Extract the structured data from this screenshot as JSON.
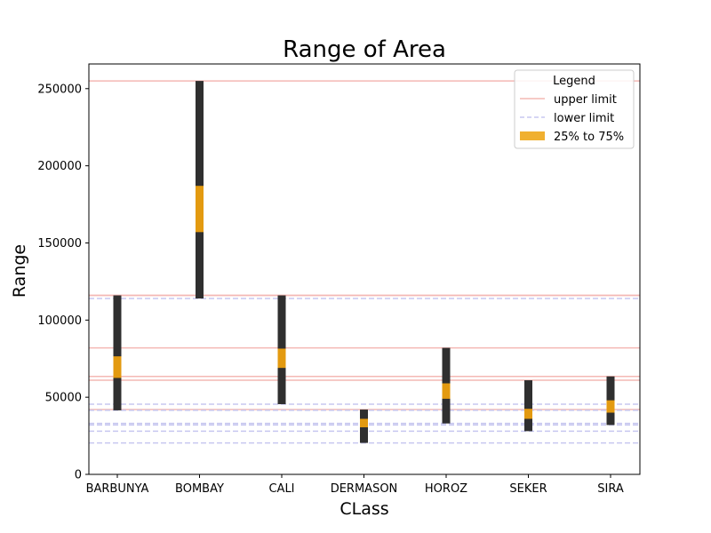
{
  "chart_data": {
    "type": "range",
    "title": "Range of Area",
    "xlabel": "CLass",
    "ylabel": "Range",
    "ylim": [
      0,
      266000
    ],
    "yticks": [
      0,
      50000,
      100000,
      150000,
      200000,
      250000
    ],
    "categories": [
      "BARBUNYA",
      "BOMBAY",
      "CALI",
      "DERMASON",
      "HOROZ",
      "SEKER",
      "SIRA"
    ],
    "min": [
      41500,
      114000,
      45500,
      20400,
      33000,
      28000,
      32000
    ],
    "max": [
      116000,
      255000,
      116000,
      42000,
      82000,
      61000,
      63500
    ],
    "q1": [
      61500,
      156500,
      69000,
      30500,
      49000,
      38000,
      40500
    ],
    "q3": [
      82500,
      187000,
      82500,
      38500,
      60500,
      48000,
      48500
    ],
    "iqr_start": [
      62500,
      157000,
      69000,
      30500,
      49000,
      36000,
      40000
    ],
    "iqr_end": [
      76500,
      187000,
      81500,
      36000,
      59000,
      42500,
      48000
    ],
    "upper_limit_lines": [
      255000,
      116000,
      116000,
      82000,
      63500,
      61000,
      42000
    ],
    "lower_limit_lines": [
      114000,
      45500,
      41500,
      33000,
      32000,
      28000,
      20400
    ],
    "legend": {
      "title": "Legend",
      "position": "top-right",
      "entries": [
        "upper limit",
        "lower limit",
        "25% to 75%"
      ]
    },
    "colors": {
      "range_bar": "#2f2f2f",
      "iqr_bar": "#e39a10",
      "upper_line": "#f4b8b4",
      "lower_line": "#c7c7f0"
    }
  }
}
